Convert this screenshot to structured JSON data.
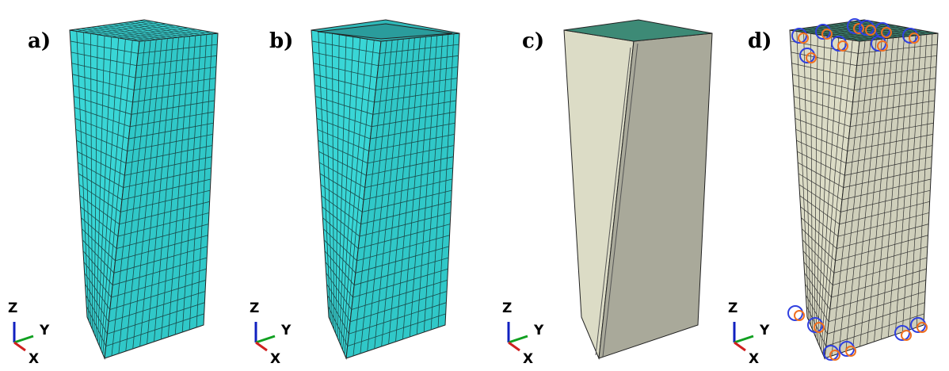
{
  "panels": [
    {
      "label": "a)",
      "axes": {
        "z": "Z",
        "y": "Y",
        "x": "X"
      }
    },
    {
      "label": "b)",
      "axes": {
        "z": "Z",
        "y": "Y",
        "x": "X"
      }
    },
    {
      "label": "c)",
      "axes": {
        "z": "Z",
        "y": "Y",
        "x": "X"
      }
    },
    {
      "label": "d)",
      "axes": {
        "z": "Z",
        "y": "Y",
        "x": "X"
      }
    }
  ]
}
